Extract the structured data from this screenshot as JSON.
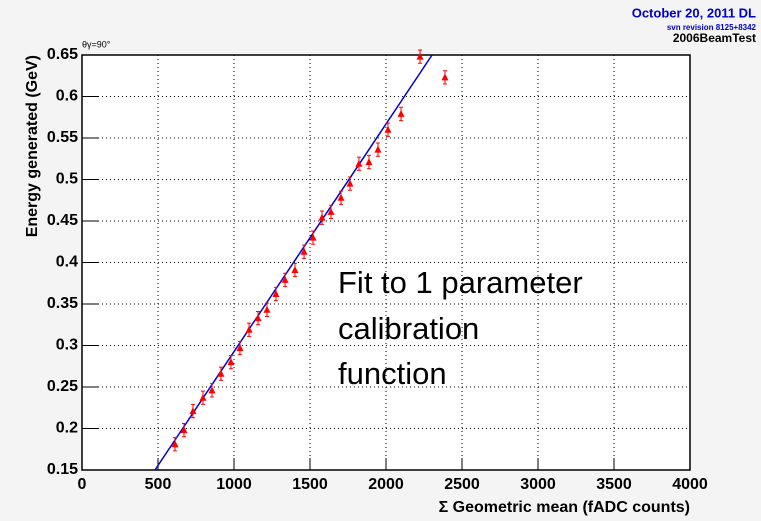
{
  "chart_data": {
    "type": "scatter",
    "header": [
      "October 20, 2011 DL",
      "svn revision 8125+8342",
      "2006BeamTest"
    ],
    "plot_label": "θγ=90°",
    "annotation": [
      "Fit to 1 parameter",
      "calibration",
      "function"
    ],
    "xlabel": "Σ Geometric mean (fADC counts)",
    "ylabel": "Energy generated (GeV)",
    "xlim": [
      0,
      4000
    ],
    "xticks": [
      0,
      500,
      1000,
      1500,
      2000,
      2500,
      3000,
      3500,
      4000
    ],
    "ylim": [
      0.15,
      0.65
    ],
    "yticks": [
      0.15,
      0.2,
      0.25,
      0.3,
      0.35,
      0.4,
      0.45,
      0.5,
      0.55,
      0.6,
      0.65
    ],
    "grid": true,
    "series": [
      {
        "color": "#ff0000",
        "x": [
          612,
          671,
          730,
          796,
          855,
          914,
          980,
          1039,
          1099,
          1158,
          1217,
          1276,
          1336,
          1401,
          1461,
          1520,
          1579,
          1638,
          1704,
          1763,
          1822,
          1888,
          1947,
          2013,
          2099,
          2224,
          2388
        ],
        "values": [
          0.181,
          0.198,
          0.221,
          0.237,
          0.246,
          0.266,
          0.28,
          0.297,
          0.319,
          0.333,
          0.343,
          0.362,
          0.379,
          0.391,
          0.413,
          0.43,
          0.454,
          0.461,
          0.478,
          0.495,
          0.519,
          0.521,
          0.536,
          0.56,
          0.579,
          0.648,
          0.623
        ],
        "errors": [
          0.008,
          0.008,
          0.008,
          0.008,
          0.008,
          0.008,
          0.008,
          0.008,
          0.008,
          0.008,
          0.008,
          0.008,
          0.008,
          0.008,
          0.008,
          0.008,
          0.008,
          0.008,
          0.008,
          0.008,
          0.008,
          0.008,
          0.008,
          0.008,
          0.008,
          0.008,
          0.008
        ]
      },
      {
        "color": "#0000cc",
        "x": [
          480,
          2303
        ],
        "values": [
          0.15,
          0.65
        ]
      }
    ]
  }
}
